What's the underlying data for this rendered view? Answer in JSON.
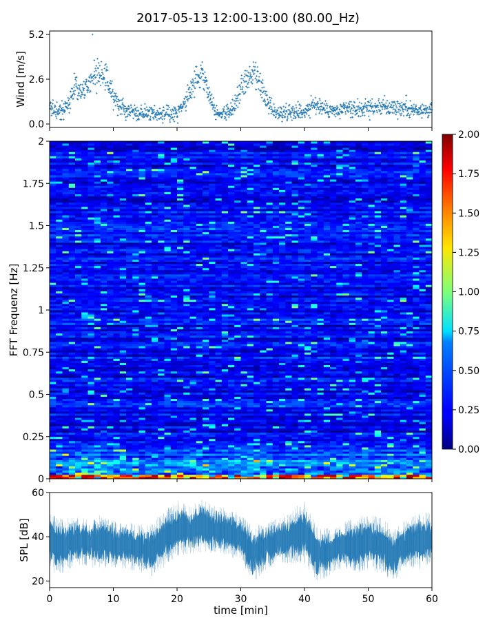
{
  "figure": {
    "title": "2017-05-13 12:00-13:00 (80.00_Hz)"
  },
  "chart_data": [
    {
      "id": "wind",
      "type": "scatter",
      "title": "",
      "xlabel": "",
      "ylabel": "Wind [m/s]",
      "xlim": [
        0,
        60
      ],
      "ylim": [
        -0.2,
        5.4
      ],
      "yticks": [
        0.0,
        2.6,
        5.2
      ],
      "ytick_labels": [
        "0.0",
        "2.6",
        "5.2"
      ],
      "xticks": [
        0,
        10,
        20,
        30,
        40,
        50,
        60
      ],
      "color": "#1f77b4",
      "trend": {
        "t": [
          0,
          1,
          2,
          3,
          4,
          5,
          6,
          7,
          8,
          9,
          10,
          11,
          12,
          13,
          14,
          15,
          16,
          17,
          18,
          19,
          20,
          21,
          22,
          23,
          24,
          25,
          26,
          27,
          28,
          29,
          30,
          31,
          32,
          33,
          34,
          35,
          36,
          37,
          38,
          39,
          40,
          41,
          42,
          43,
          44,
          45,
          46,
          47,
          48,
          49,
          50,
          51,
          52,
          53,
          54,
          55,
          56,
          57,
          58,
          59,
          60
        ],
        "v": [
          0.8,
          0.9,
          0.7,
          1.2,
          2.2,
          1.8,
          2.3,
          2.8,
          3.0,
          2.6,
          1.6,
          1.1,
          0.9,
          0.8,
          0.7,
          0.6,
          0.7,
          0.6,
          0.5,
          0.6,
          0.7,
          1.0,
          1.9,
          2.5,
          3.1,
          1.8,
          0.8,
          0.6,
          0.7,
          1.0,
          2.0,
          2.5,
          2.8,
          2.2,
          1.4,
          0.8,
          0.6,
          0.7,
          0.8,
          0.7,
          0.8,
          1.0,
          1.1,
          0.9,
          0.8,
          0.7,
          0.8,
          0.9,
          0.8,
          0.9,
          1.0,
          0.9,
          1.1,
          0.9,
          1.0,
          0.9,
          1.0,
          0.8,
          0.9,
          0.8,
          0.8
        ]
      },
      "spread": 0.45,
      "n_points": 1400,
      "max_value": 5.2
    },
    {
      "id": "spectrogram",
      "type": "heatmap",
      "title": "",
      "xlabel": "",
      "ylabel": "FFT Frequenz [Hz]",
      "xlim": [
        0,
        60
      ],
      "ylim": [
        0,
        2
      ],
      "yticks": [
        0,
        0.25,
        0.5,
        0.75,
        1,
        1.25,
        1.5,
        1.75,
        2
      ],
      "ytick_labels": [
        "0",
        "0.25",
        "0.5",
        "0.75",
        "1",
        "1.25",
        "1.5",
        "1.75",
        "2"
      ],
      "xticks": [
        0,
        10,
        20,
        30,
        40,
        50,
        60
      ],
      "colormap": "jet",
      "colorbar": {
        "range": [
          0,
          2
        ],
        "ticks": [
          0.0,
          0.25,
          0.5,
          0.75,
          1.0,
          1.25,
          1.5,
          1.75,
          2.0
        ],
        "tick_labels": [
          "0.00",
          "0.25",
          "0.50",
          "0.75",
          "1.00",
          "1.25",
          "1.50",
          "1.75",
          "2.00"
        ]
      },
      "n_time_bins": 60,
      "n_freq_bins": 160,
      "base_level": 0.22,
      "low_freq_band": {
        "f_max": 0.03,
        "level": 1.8
      },
      "activity_bands": [
        {
          "f_min": 0.03,
          "f_max": 0.25,
          "level": 0.55
        }
      ]
    },
    {
      "id": "spl",
      "type": "area",
      "title": "",
      "xlabel": "time [min]",
      "ylabel": "SPL [dB]",
      "xlim": [
        0,
        60
      ],
      "ylim": [
        17,
        60
      ],
      "yticks": [
        20,
        40,
        60
      ],
      "ytick_labels": [
        "20",
        "40",
        "60"
      ],
      "xticks": [
        0,
        10,
        20,
        30,
        40,
        50,
        60
      ],
      "xtick_labels": [
        "0",
        "10",
        "20",
        "30",
        "40",
        "50",
        "60"
      ],
      "color": "#1f77b4",
      "trend": {
        "t": [
          0,
          2,
          4,
          6,
          8,
          10,
          12,
          14,
          16,
          18,
          20,
          22,
          24,
          26,
          28,
          30,
          32,
          34,
          36,
          38,
          40,
          42,
          44,
          46,
          48,
          50,
          52,
          54,
          56,
          58,
          60
        ],
        "mean": [
          38,
          36,
          38,
          37,
          38,
          37,
          36,
          35,
          34,
          39,
          44,
          43,
          45,
          43,
          42,
          40,
          32,
          36,
          38,
          40,
          42,
          32,
          33,
          36,
          36,
          38,
          36,
          32,
          37,
          38,
          39
        ],
        "spread": [
          8,
          7,
          6,
          6,
          7,
          6,
          6,
          6,
          7,
          7,
          7,
          6,
          7,
          6,
          6,
          6,
          7,
          6,
          6,
          7,
          8,
          7,
          6,
          6,
          7,
          7,
          7,
          7,
          6,
          7,
          7
        ]
      }
    }
  ]
}
